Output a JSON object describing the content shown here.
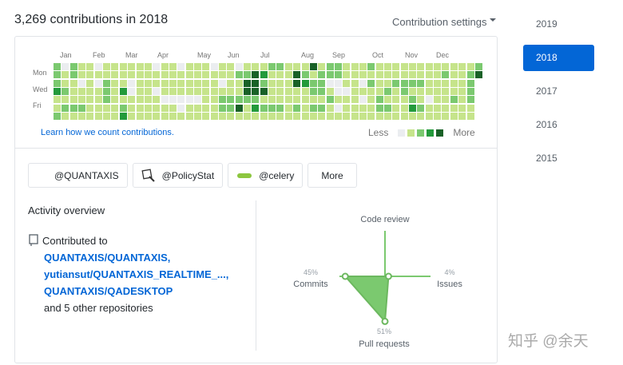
{
  "header": {
    "title": "3,269 contributions in 2018",
    "settings_label": "Contribution settings"
  },
  "calendar": {
    "months": [
      "Jan",
      "Feb",
      "Mar",
      "Apr",
      "May",
      "Jun",
      "Jul",
      "Aug",
      "Sep",
      "Oct",
      "Nov",
      "Dec"
    ],
    "days": [
      "Mon",
      "Wed",
      "Fri"
    ],
    "colors": [
      "#ebedf0",
      "#c6e48b",
      "#7bc96f",
      "#239a3b",
      "#196127"
    ],
    "weeks": [
      "2223112",
      "0112121",
      "2211121",
      "1101121",
      "1111111",
      "0101111",
      "1122211",
      "1111111",
      "1113123",
      "1100111",
      "1111111",
      "1111111",
      "0110111",
      "1111011",
      "1111011",
      "0111001",
      "1111011",
      "1111011",
      "1111111",
      "0111111",
      "1101221",
      "1111221",
      "0211241",
      "1244211",
      "1444231",
      "1324121",
      "2111121",
      "2111121",
      "1111111",
      "1441121",
      "1231111",
      "4122121",
      "1222121",
      "2201211",
      "2200101",
      "1110111",
      "1111111",
      "1101011",
      "2121111",
      "1111221",
      "1112121",
      "1121111",
      "1122111",
      "1121231",
      "1121121",
      "1111011",
      "1111111",
      "1211111",
      "1111211",
      "1111111",
      "1222211",
      "2412211",
      "1111111",
      "1111111",
      "0111111",
      "1211111",
      "1211111"
    ],
    "learn_link": "Learn how we count contributions.",
    "less": "Less",
    "more": "More"
  },
  "orgs": [
    {
      "label": "@QUANTAXIS",
      "icon": "quantaxis-logo-icon"
    },
    {
      "label": "@PolicyStat",
      "icon": "policystat-logo-icon"
    },
    {
      "label": "@celery",
      "icon": "celery-logo-icon"
    }
  ],
  "more_button": "More",
  "activity": {
    "title": "Activity overview",
    "contributed": "Contributed to",
    "repos": [
      "QUANTAXIS/QUANTAXIS,",
      "yutiansut/QUANTAXIS_REALTIME_...,",
      "QUANTAXIS/QADESKTOP"
    ],
    "others": "and 5 other repositories"
  },
  "chart_data": {
    "type": "radar",
    "axes": [
      {
        "label": "Code review",
        "value": 0,
        "pct": ""
      },
      {
        "label": "Issues",
        "value": 4,
        "pct": "4%"
      },
      {
        "label": "Pull requests",
        "value": 51,
        "pct": "51%"
      },
      {
        "label": "Commits",
        "value": 45,
        "pct": "45%"
      }
    ],
    "color": "#7bc96f"
  },
  "years": [
    "2019",
    "2018",
    "2017",
    "2016",
    "2015"
  ],
  "selected_year": "2018",
  "watermark": "知乎 @余天"
}
